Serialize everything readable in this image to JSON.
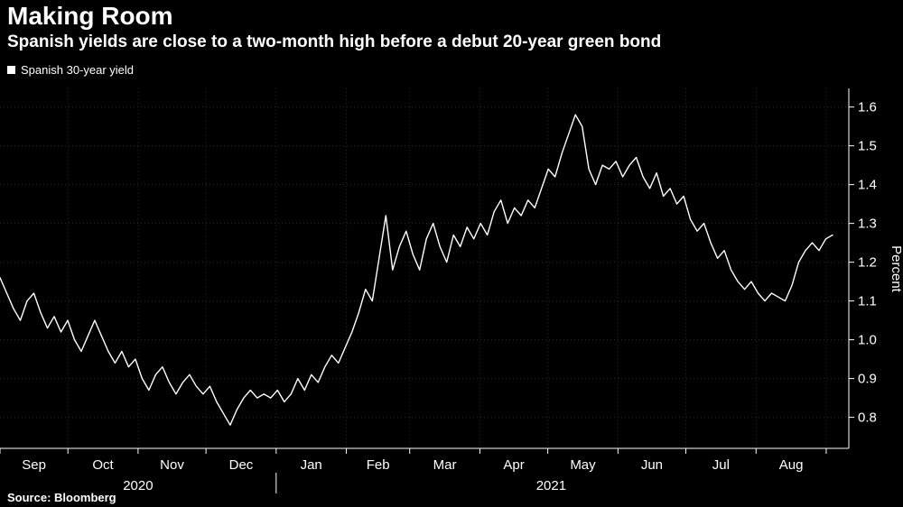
{
  "header": {
    "title": "Making Room",
    "subtitle": "Spanish yields are close to a two-month high before a debut 20-year green bond"
  },
  "legend": {
    "marker": "square-icon",
    "label": "Spanish 30-year yield"
  },
  "source": "Source: Bloomberg",
  "colors": {
    "background": "#000000",
    "line": "#ffffff",
    "text": "#ffffff",
    "grid": "#2a2a2a",
    "axis": "#ffffff"
  },
  "chart_data": {
    "type": "line",
    "title": "Making Room",
    "subtitle": "Spanish yields are close to a two-month high before a debut 20-year green bond",
    "ylabel": "Percent",
    "ylim": [
      0.72,
      1.648
    ],
    "yticks": [
      0.8,
      0.9,
      1.0,
      1.1,
      1.2,
      1.3,
      1.4,
      1.5,
      1.6
    ],
    "ytick_labels": [
      "0.8",
      "0.9",
      "1.0",
      "1.1",
      "1.2",
      "1.3",
      "1.4",
      "1.5",
      "1.6"
    ],
    "x_months": [
      "Sep",
      "Oct",
      "Nov",
      "Dec",
      "Jan",
      "Feb",
      "Mar",
      "Apr",
      "May",
      "Jun",
      "Jul",
      "Aug"
    ],
    "month_days": [
      30,
      31,
      30,
      31,
      31,
      28,
      31,
      30,
      31,
      30,
      31,
      31
    ],
    "trailing_days": 6,
    "year_labels": [
      {
        "label": "2020",
        "month_span": [
          0,
          4
        ]
      },
      {
        "label": "2021",
        "month_span": [
          4,
          12
        ]
      }
    ],
    "legend": [
      "Spanish 30-year yield"
    ],
    "grid": true,
    "legend_position": "top-left",
    "series": [
      {
        "name": "Spanish 30-year yield",
        "values": [
          1.16,
          1.12,
          1.08,
          1.05,
          1.1,
          1.12,
          1.07,
          1.03,
          1.06,
          1.02,
          1.05,
          1.0,
          0.97,
          1.01,
          1.05,
          1.01,
          0.97,
          0.94,
          0.97,
          0.93,
          0.95,
          0.9,
          0.87,
          0.91,
          0.93,
          0.89,
          0.86,
          0.89,
          0.91,
          0.88,
          0.86,
          0.88,
          0.84,
          0.81,
          0.78,
          0.82,
          0.85,
          0.87,
          0.85,
          0.86,
          0.85,
          0.87,
          0.84,
          0.86,
          0.9,
          0.87,
          0.91,
          0.89,
          0.93,
          0.96,
          0.94,
          0.98,
          1.02,
          1.07,
          1.13,
          1.1,
          1.21,
          1.32,
          1.18,
          1.24,
          1.28,
          1.22,
          1.18,
          1.26,
          1.3,
          1.24,
          1.2,
          1.27,
          1.24,
          1.29,
          1.26,
          1.3,
          1.27,
          1.33,
          1.36,
          1.3,
          1.34,
          1.32,
          1.36,
          1.34,
          1.39,
          1.44,
          1.42,
          1.48,
          1.53,
          1.58,
          1.55,
          1.44,
          1.4,
          1.45,
          1.44,
          1.46,
          1.42,
          1.45,
          1.47,
          1.42,
          1.39,
          1.43,
          1.37,
          1.39,
          1.35,
          1.37,
          1.31,
          1.28,
          1.3,
          1.25,
          1.21,
          1.23,
          1.18,
          1.15,
          1.13,
          1.15,
          1.12,
          1.1,
          1.12,
          1.11,
          1.1,
          1.14,
          1.2,
          1.23,
          1.25,
          1.23,
          1.26,
          1.27
        ]
      }
    ]
  }
}
